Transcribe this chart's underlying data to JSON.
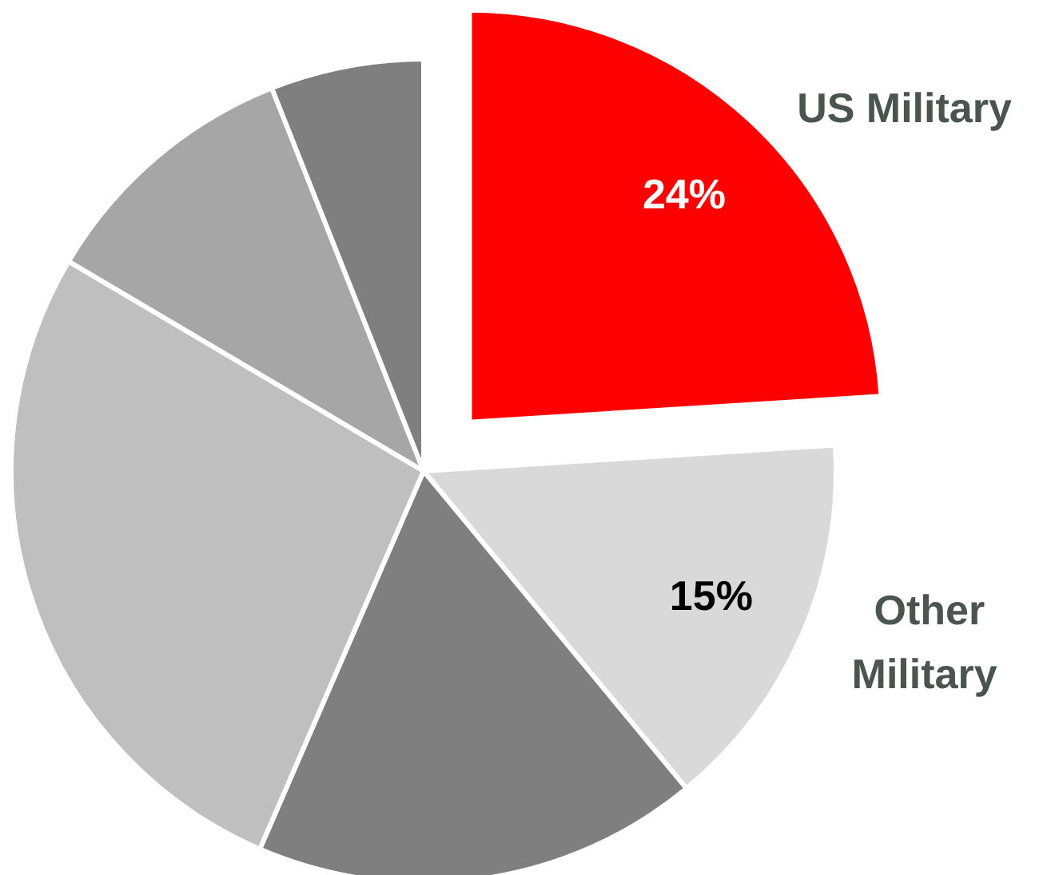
{
  "chart_data": {
    "type": "pie",
    "categories": [
      "US Military",
      "Other Military",
      null,
      null,
      null,
      null
    ],
    "values": [
      24,
      15,
      17.5,
      27,
      10.5,
      6
    ],
    "colors": [
      "#ff0000",
      "#d9d9d9",
      "#7f7f7f",
      "#bfbfbf",
      "#a6a6a6",
      "#7f7f7f"
    ],
    "value_labels": [
      "24%",
      "15%",
      null,
      null,
      null,
      null
    ]
  }
}
